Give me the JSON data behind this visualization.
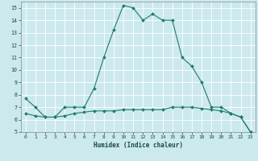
{
  "xlabel": "Humidex (Indice chaleur)",
  "bg_color": "#cce9ee",
  "grid_color": "#b0d8de",
  "line_color": "#1e7b6e",
  "x_upper": [
    0,
    1,
    2,
    3,
    4,
    5,
    6,
    7,
    8,
    9,
    10,
    11,
    12,
    13,
    14,
    15,
    16,
    17,
    18,
    19,
    20,
    21,
    22,
    23
  ],
  "y_upper": [
    7.7,
    7.0,
    6.2,
    6.2,
    7.0,
    7.0,
    7.0,
    8.5,
    11.0,
    13.2,
    15.2,
    15.0,
    14.0,
    14.5,
    14.0,
    14.0,
    11.0,
    10.3,
    9.0,
    7.0,
    7.0,
    6.5,
    6.2,
    5.0
  ],
  "x_lower": [
    0,
    1,
    2,
    3,
    4,
    5,
    6,
    7,
    8,
    9,
    10,
    11,
    12,
    13,
    14,
    15,
    16,
    17,
    18,
    19,
    20,
    21,
    22,
    23
  ],
  "y_lower": [
    6.5,
    6.3,
    6.2,
    6.2,
    6.3,
    6.5,
    6.6,
    6.7,
    6.7,
    6.7,
    6.8,
    6.8,
    6.8,
    6.8,
    6.8,
    7.0,
    7.0,
    7.0,
    6.9,
    6.8,
    6.7,
    6.5,
    6.2,
    5.0
  ],
  "xlim": [
    -0.5,
    23.5
  ],
  "ylim": [
    5,
    15.5
  ],
  "yticks": [
    5,
    6,
    7,
    8,
    9,
    10,
    11,
    12,
    13,
    14,
    15
  ],
  "xticks": [
    0,
    1,
    2,
    3,
    4,
    5,
    6,
    7,
    8,
    9,
    10,
    11,
    12,
    13,
    14,
    15,
    16,
    17,
    18,
    19,
    20,
    21,
    22,
    23
  ],
  "markersize": 2.0,
  "linewidth": 0.8
}
